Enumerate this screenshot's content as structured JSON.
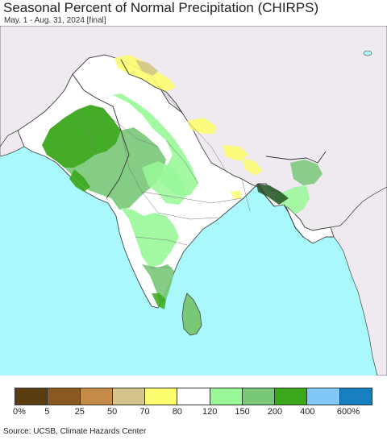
{
  "title": "Seasonal Percent of Normal Precipitation (CHIRPS)",
  "subtitle": "May. 1 - Aug. 31, 2024 [final]",
  "source": "Source: UCSB, Climate Hazards Center",
  "colors": {
    "ocean": "#a8f8fc",
    "outside_land": "#efeaf0",
    "normal_land": "#ffffff",
    "boundary": "#444444"
  },
  "legend": {
    "colors": [
      "#5b3d14",
      "#8a5a22",
      "#c48c48",
      "#d4c48c",
      "#fdfd70",
      "#ffffff",
      "#98f898",
      "#78c878",
      "#3aa81a",
      "#80c8f8",
      "#1880c0"
    ],
    "ticks": [
      "0%",
      "5",
      "25",
      "50",
      "70",
      "80",
      "120",
      "150",
      "200",
      "400",
      "600%"
    ]
  }
}
